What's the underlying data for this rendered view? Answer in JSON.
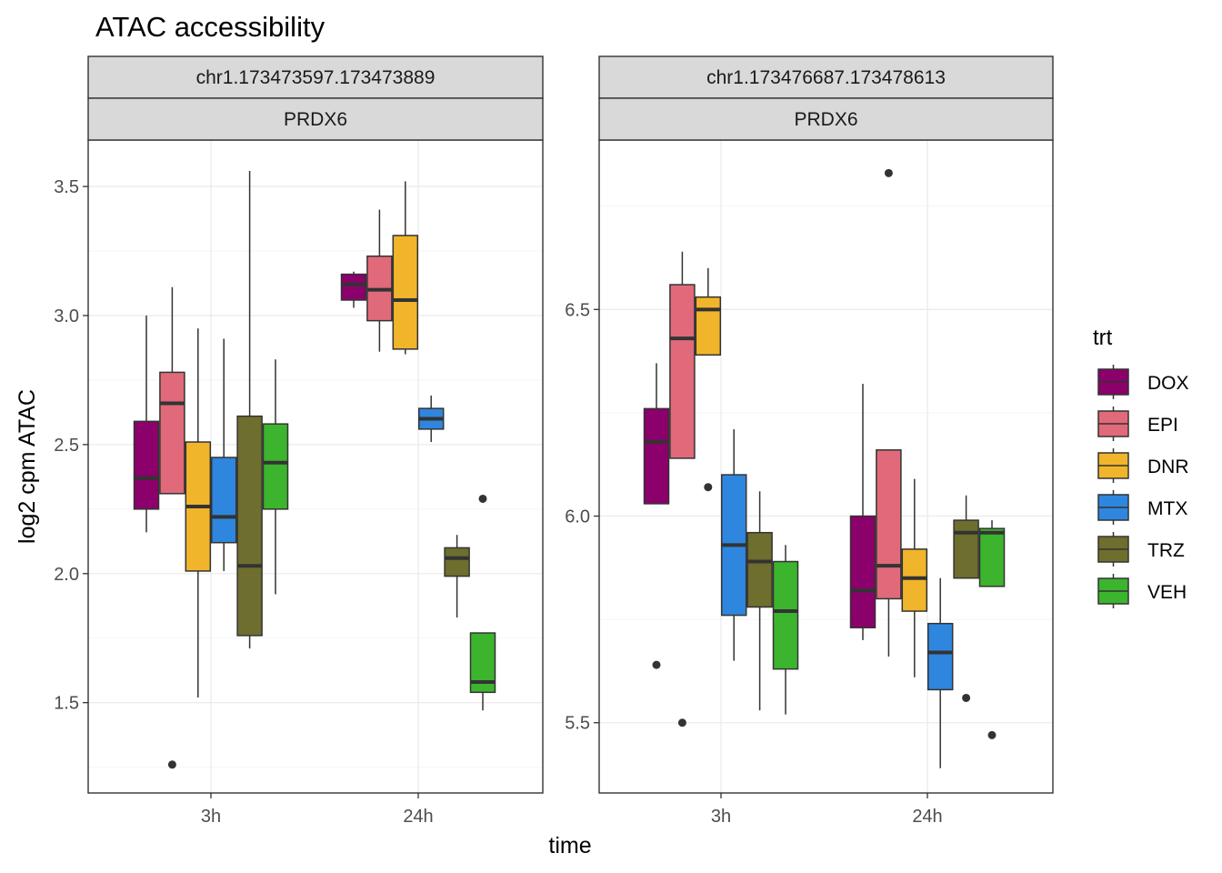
{
  "chart_data": {
    "type": "boxplot",
    "title": "ATAC accessibility",
    "xlabel": "time",
    "ylabel": "log2 cpm ATAC",
    "categories": [
      "3h",
      "24h"
    ],
    "legend": {
      "title": "trt",
      "position": "right",
      "entries": [
        {
          "name": "DOX",
          "color": "#8B006B"
        },
        {
          "name": "EPI",
          "color": "#E06A7A"
        },
        {
          "name": "DNR",
          "color": "#F0B52A"
        },
        {
          "name": "MTX",
          "color": "#2F86DE"
        },
        {
          "name": "TRZ",
          "color": "#6E6E2E"
        },
        {
          "name": "VEH",
          "color": "#3CB42E"
        }
      ]
    },
    "grid": true,
    "panels": [
      {
        "strip": [
          "chr1.173473597.173473889",
          "PRDX6"
        ],
        "ylim": [
          1.15,
          3.68
        ],
        "yticks": [
          1.5,
          2.0,
          2.5,
          3.0,
          3.5
        ],
        "ytick_labels": [
          "1.5",
          "2.0",
          "2.5",
          "3.0",
          "3.5"
        ],
        "boxes": [
          {
            "time": "3h",
            "trt": "DOX",
            "min": 2.16,
            "q1": 2.25,
            "median": 2.37,
            "q3": 2.59,
            "max": 3.0,
            "outliers": []
          },
          {
            "time": "3h",
            "trt": "EPI",
            "min": 2.31,
            "q1": 2.31,
            "median": 2.66,
            "q3": 2.78,
            "max": 3.11,
            "outliers": [
              1.26
            ]
          },
          {
            "time": "3h",
            "trt": "DNR",
            "min": 1.52,
            "q1": 2.01,
            "median": 2.26,
            "q3": 2.51,
            "max": 2.95,
            "outliers": []
          },
          {
            "time": "3h",
            "trt": "MTX",
            "min": 2.01,
            "q1": 2.12,
            "median": 2.22,
            "q3": 2.45,
            "max": 2.91,
            "outliers": []
          },
          {
            "time": "3h",
            "trt": "TRZ",
            "min": 1.71,
            "q1": 1.76,
            "median": 2.03,
            "q3": 2.61,
            "max": 3.56,
            "outliers": []
          },
          {
            "time": "3h",
            "trt": "VEH",
            "min": 1.92,
            "q1": 2.25,
            "median": 2.43,
            "q3": 2.58,
            "max": 2.83,
            "outliers": []
          },
          {
            "time": "24h",
            "trt": "DOX",
            "min": 3.03,
            "q1": 3.06,
            "median": 3.12,
            "q3": 3.16,
            "max": 3.17,
            "outliers": []
          },
          {
            "time": "24h",
            "trt": "EPI",
            "min": 2.86,
            "q1": 2.98,
            "median": 3.1,
            "q3": 3.23,
            "max": 3.41,
            "outliers": []
          },
          {
            "time": "24h",
            "trt": "DNR",
            "min": 2.85,
            "q1": 2.87,
            "median": 3.06,
            "q3": 3.31,
            "max": 3.52,
            "outliers": []
          },
          {
            "time": "24h",
            "trt": "MTX",
            "min": 2.51,
            "q1": 2.56,
            "median": 2.6,
            "q3": 2.64,
            "max": 2.69,
            "outliers": []
          },
          {
            "time": "24h",
            "trt": "TRZ",
            "min": 1.83,
            "q1": 1.99,
            "median": 2.06,
            "q3": 2.1,
            "max": 2.15,
            "outliers": []
          },
          {
            "time": "24h",
            "trt": "VEH",
            "min": 1.47,
            "q1": 1.54,
            "median": 1.58,
            "q3": 1.77,
            "max": 1.77,
            "outliers": [
              2.29
            ]
          }
        ]
      },
      {
        "strip": [
          "chr1.173476687.173478613",
          "PRDX6"
        ],
        "ylim": [
          5.33,
          6.91
        ],
        "yticks": [
          5.5,
          6.0,
          6.5
        ],
        "ytick_labels": [
          "5.5",
          "6.0",
          "6.5"
        ],
        "boxes": [
          {
            "time": "3h",
            "trt": "DOX",
            "min": 6.03,
            "q1": 6.03,
            "median": 6.18,
            "q3": 6.26,
            "max": 6.37,
            "outliers": [
              5.64
            ]
          },
          {
            "time": "3h",
            "trt": "EPI",
            "min": 6.14,
            "q1": 6.14,
            "median": 6.43,
            "q3": 6.56,
            "max": 6.64,
            "outliers": [
              5.5
            ]
          },
          {
            "time": "3h",
            "trt": "DNR",
            "min": 6.39,
            "q1": 6.39,
            "median": 6.5,
            "q3": 6.53,
            "max": 6.6,
            "outliers": [
              6.07
            ]
          },
          {
            "time": "3h",
            "trt": "MTX",
            "min": 5.65,
            "q1": 5.76,
            "median": 5.93,
            "q3": 6.1,
            "max": 6.21,
            "outliers": []
          },
          {
            "time": "3h",
            "trt": "TRZ",
            "min": 5.53,
            "q1": 5.78,
            "median": 5.89,
            "q3": 5.96,
            "max": 6.06,
            "outliers": []
          },
          {
            "time": "3h",
            "trt": "VEH",
            "min": 5.52,
            "q1": 5.63,
            "median": 5.77,
            "q3": 5.89,
            "max": 5.93,
            "outliers": []
          },
          {
            "time": "24h",
            "trt": "DOX",
            "min": 5.7,
            "q1": 5.73,
            "median": 5.82,
            "q3": 6.0,
            "max": 6.32,
            "outliers": []
          },
          {
            "time": "24h",
            "trt": "EPI",
            "min": 5.66,
            "q1": 5.8,
            "median": 5.88,
            "q3": 6.16,
            "max": 6.16,
            "outliers": [
              6.83
            ]
          },
          {
            "time": "24h",
            "trt": "DNR",
            "min": 5.61,
            "q1": 5.77,
            "median": 5.85,
            "q3": 5.92,
            "max": 6.09,
            "outliers": []
          },
          {
            "time": "24h",
            "trt": "MTX",
            "min": 5.39,
            "q1": 5.58,
            "median": 5.67,
            "q3": 5.74,
            "max": 5.85,
            "outliers": []
          },
          {
            "time": "24h",
            "trt": "TRZ",
            "min": 5.85,
            "q1": 5.85,
            "median": 5.96,
            "q3": 5.99,
            "max": 6.05,
            "outliers": [
              5.56
            ]
          },
          {
            "time": "24h",
            "trt": "VEH",
            "min": 5.83,
            "q1": 5.83,
            "median": 5.96,
            "q3": 5.97,
            "max": 5.99,
            "outliers": [
              5.47
            ]
          }
        ]
      }
    ]
  }
}
